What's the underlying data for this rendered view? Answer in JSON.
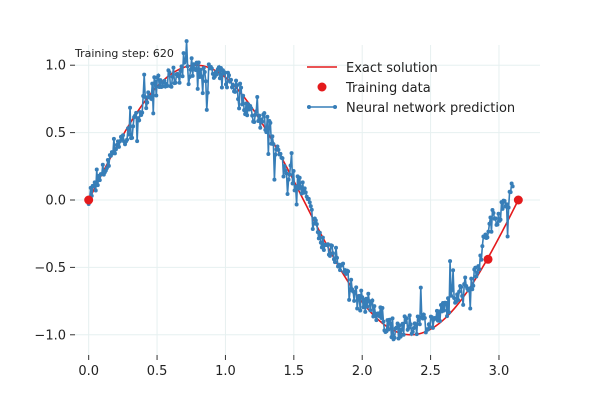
{
  "chart_data": {
    "type": "line",
    "annotation": "Training step: 620",
    "xlim": [
      -0.1,
      3.3
    ],
    "ylim": [
      -1.15,
      1.15
    ],
    "xticks": [
      0.0,
      0.5,
      1.0,
      1.5,
      2.0,
      2.5,
      3.0
    ],
    "xtick_labels": [
      "0.0",
      "0.5",
      "1.0",
      "1.5",
      "2.0",
      "2.5",
      "3.0"
    ],
    "yticks": [
      -1.0,
      -0.5,
      0.0,
      0.5,
      1.0
    ],
    "ytick_labels": [
      "−1.0",
      "−0.5",
      "0.0",
      "0.5",
      "1.0"
    ],
    "grid": true,
    "legend_position": "top-right",
    "colors": {
      "exact": "#e41a1c",
      "training": "#e41a1c",
      "prediction": "#377eb8",
      "grid": "#e6f0f0"
    },
    "series": [
      {
        "name": "Exact solution",
        "kind": "line",
        "function": "sin(2x)",
        "x_range": [
          0.0,
          3.1416
        ],
        "x_sample": [
          0.0,
          0.3927,
          0.7854,
          1.1781,
          1.5708,
          1.9635,
          2.3562,
          2.7489,
          3.1416
        ],
        "y_sample": [
          0.0,
          0.707,
          1.0,
          0.707,
          0.0,
          -0.707,
          -1.0,
          -0.707,
          0.0
        ]
      },
      {
        "name": "Training data",
        "kind": "scatter",
        "x": [
          0.0,
          2.92,
          3.1416
        ],
        "y": [
          0.0,
          -0.44,
          0.0
        ]
      },
      {
        "name": "Neural network prediction",
        "kind": "line-markers",
        "x_range": [
          0.0,
          3.1
        ],
        "x_sample": [
          0.0,
          0.25,
          0.5,
          0.75,
          1.0,
          1.25,
          1.5,
          1.75,
          2.0,
          2.25,
          2.5,
          2.75,
          3.0,
          3.1
        ],
        "y_sample": [
          0.05,
          0.45,
          0.85,
          0.98,
          0.9,
          0.6,
          0.15,
          -0.35,
          -0.75,
          -0.95,
          -0.9,
          -0.65,
          -0.1,
          0.05
        ],
        "noise_amplitude": 0.08
      }
    ]
  }
}
